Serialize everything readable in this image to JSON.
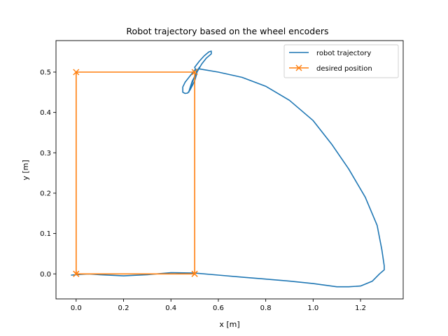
{
  "chart_data": {
    "type": "line",
    "title": "Robot trajectory based on the wheel encoders",
    "xlabel": "x [m]",
    "ylabel": "y [m]",
    "xlim": [
      -0.085,
      1.38
    ],
    "ylim": [
      -0.062,
      0.578
    ],
    "xticks": [
      0.0,
      0.2,
      0.4,
      0.6,
      0.8,
      1.0,
      1.2
    ],
    "xtick_labels": [
      "0.0",
      "0.2",
      "0.4",
      "0.6",
      "0.8",
      "1.0",
      "1.2"
    ],
    "yticks": [
      0.0,
      0.1,
      0.2,
      0.3,
      0.4,
      0.5
    ],
    "ytick_labels": [
      "0.0",
      "0.1",
      "0.2",
      "0.3",
      "0.4",
      "0.5"
    ],
    "grid": false,
    "legend_position": "top-right",
    "series": [
      {
        "name": "robot trajectory",
        "color": "#1f77b4",
        "marker": "none",
        "x": [
          -0.02,
          0.0,
          0.05,
          0.1,
          0.2,
          0.3,
          0.4,
          0.5,
          0.6,
          0.7,
          0.8,
          0.9,
          1.0,
          1.1,
          1.15,
          1.2,
          1.25,
          1.28,
          1.3,
          1.3,
          1.29,
          1.27,
          1.22,
          1.15,
          1.08,
          1.0,
          0.9,
          0.8,
          0.7,
          0.6,
          0.52,
          0.5,
          0.48,
          0.46,
          0.45,
          0.45,
          0.46,
          0.47,
          0.48,
          0.5,
          0.51,
          0.5,
          0.52,
          0.54,
          0.56,
          0.57,
          0.57,
          0.55,
          0.53,
          0.51,
          0.49,
          0.48,
          0.475,
          0.5,
          0.52
        ],
        "y": [
          -0.003,
          -0.002,
          0.0,
          -0.002,
          -0.005,
          -0.002,
          0.003,
          0.002,
          -0.003,
          -0.008,
          -0.013,
          -0.018,
          -0.024,
          -0.032,
          -0.032,
          -0.03,
          -0.018,
          0.0,
          0.01,
          0.02,
          0.06,
          0.12,
          0.19,
          0.26,
          0.32,
          0.38,
          0.43,
          0.465,
          0.487,
          0.5,
          0.508,
          0.505,
          0.49,
          0.475,
          0.463,
          0.45,
          0.447,
          0.448,
          0.455,
          0.478,
          0.498,
          0.512,
          0.527,
          0.54,
          0.55,
          0.552,
          0.545,
          0.535,
          0.52,
          0.5,
          0.478,
          0.46,
          0.45,
          0.49,
          0.512
        ]
      },
      {
        "name": "desired position",
        "color": "#ff7f0e",
        "marker": "x",
        "x": [
          0.0,
          0.5,
          0.5,
          0.0,
          0.0,
          0.5
        ],
        "y": [
          0.0,
          0.0,
          0.5,
          0.5,
          0.0,
          0.0
        ]
      }
    ]
  }
}
